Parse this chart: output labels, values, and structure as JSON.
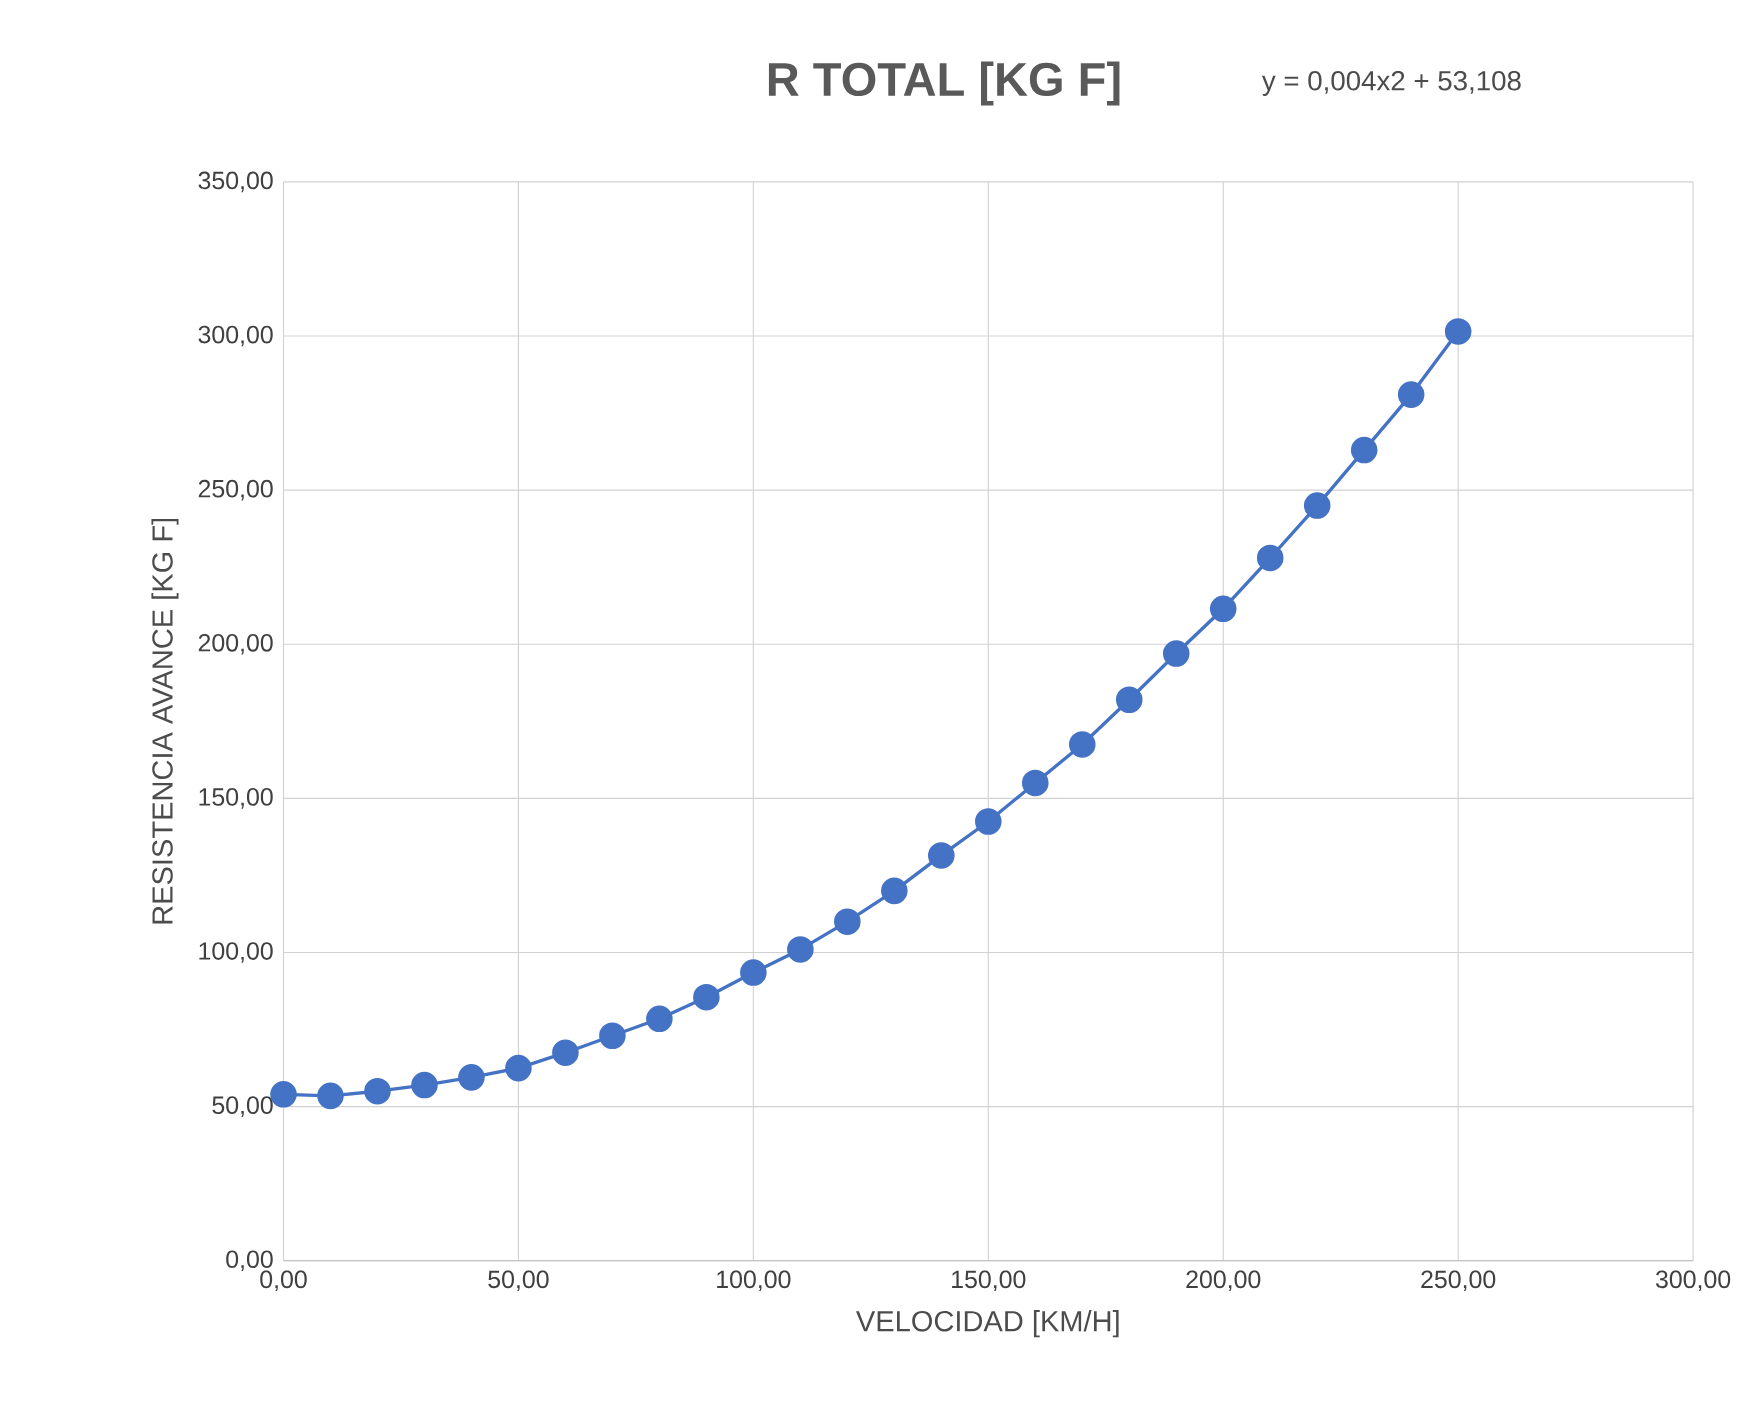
{
  "chart_data": {
    "type": "line",
    "title": "R TOTAL [KG F]",
    "annotations": [
      "y = 0,004x2 + 53,108"
    ],
    "xlabel": "VELOCIDAD [KM/H]",
    "ylabel": "RESISTENCIA AVANCE [KG F]",
    "x": [
      0,
      10,
      20,
      30,
      40,
      50,
      60,
      70,
      80,
      90,
      100,
      110,
      120,
      130,
      140,
      150,
      160,
      170,
      180,
      190,
      200,
      210,
      220,
      230,
      240,
      250
    ],
    "series": [
      {
        "color": "#4472c4",
        "values": [
          54,
          53.5,
          55,
          57,
          59.5,
          62.5,
          67.5,
          73,
          78.5,
          85.5,
          93.5,
          101,
          110,
          120,
          131.5,
          142.5,
          155,
          167.5,
          182,
          197,
          211.5,
          228,
          245,
          263,
          281,
          301.5
        ]
      }
    ],
    "xlim": [
      0,
      300
    ],
    "ylim": [
      0,
      350
    ],
    "xticks": [
      {
        "value": 0,
        "label": "0,00"
      },
      {
        "value": 50,
        "label": "50,00"
      },
      {
        "value": 100,
        "label": "100,00"
      },
      {
        "value": 150,
        "label": "150,00"
      },
      {
        "value": 200,
        "label": "200,00"
      },
      {
        "value": 250,
        "label": "250,00"
      },
      {
        "value": 300,
        "label": "300,00"
      }
    ],
    "yticks": [
      {
        "value": 0,
        "label": "0,00"
      },
      {
        "value": 50,
        "label": "50,00"
      },
      {
        "value": 100,
        "label": "100,00"
      },
      {
        "value": 150,
        "label": "150,00"
      },
      {
        "value": 200,
        "label": "200,00"
      },
      {
        "value": 250,
        "label": "250,00"
      },
      {
        "value": 300,
        "label": "300,00"
      },
      {
        "value": 350,
        "label": "350,00"
      }
    ],
    "grid": true,
    "marker": "circle",
    "line_style": "solid"
  }
}
